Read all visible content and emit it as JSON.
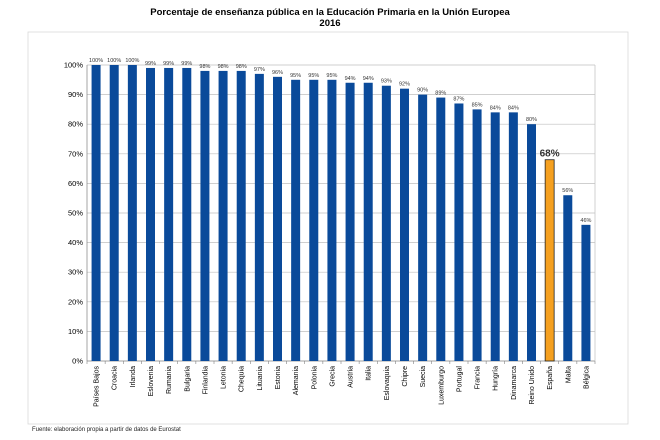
{
  "chart_data": {
    "type": "bar",
    "title": "Porcentaje de enseñanza pública en la Educación Primaria en la Unión Europea",
    "subtitle": "2016",
    "xlabel": "",
    "ylabel": "",
    "ylim": [
      0,
      100
    ],
    "y_ticks": [
      "0%",
      "10%",
      "20%",
      "30%",
      "40%",
      "50%",
      "60%",
      "70%",
      "80%",
      "90%",
      "100%"
    ],
    "grid": true,
    "categories": [
      "Países Bajos",
      "Croacia",
      "Irlanda",
      "Eslovenia",
      "Rumania",
      "Bulgaria",
      "Finlandia",
      "Letonia",
      "Chequia",
      "Lituania",
      "Estonia",
      "Alemania",
      "Polonia",
      "Grecia",
      "Austria",
      "Italia",
      "Eslovaquia",
      "Chipre",
      "Suecia",
      "Luxemburgo",
      "Portugal",
      "Francia",
      "Hungría",
      "Dinamarca",
      "Reino Unido",
      "España",
      "Malta",
      "Bélgica"
    ],
    "values": [
      100,
      100,
      100,
      99,
      99,
      99,
      98,
      98,
      98,
      97,
      96,
      95,
      95,
      95,
      94,
      94,
      93,
      92,
      90,
      89,
      87,
      85,
      84,
      84,
      80,
      68,
      56,
      46
    ],
    "value_labels": [
      "100%",
      "100%",
      "100%",
      "99%",
      "99%",
      "99%",
      "98%",
      "98%",
      "98%",
      "97%",
      "96%",
      "95%",
      "95%",
      "95%",
      "94%",
      "94%",
      "93%",
      "92%",
      "90%",
      "89%",
      "87%",
      "85%",
      "84%",
      "84%",
      "80%",
      "68%",
      "56%",
      "46%"
    ],
    "highlight_category": "España",
    "colors": {
      "bar": "#0a4a9a",
      "highlight": "#f5a020",
      "highlight_edge": "#222222",
      "grid": "#bfbfbf"
    }
  },
  "footnote": "Fuente: elaboración propia a partir de datos de Eurostat"
}
